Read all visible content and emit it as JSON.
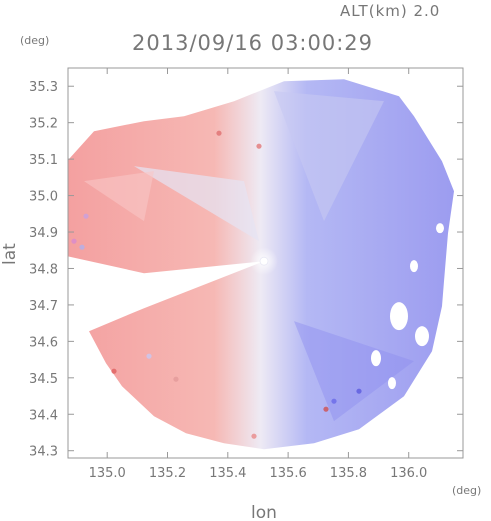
{
  "header": {
    "altitude": "ALT(km) 2.0",
    "timestamp": "2013/09/16 03:00:29"
  },
  "colors": {
    "approaching": "#7b7bf2",
    "receding": "#f28a8a",
    "frame": "#999999",
    "text": "#777777"
  },
  "chart_data": {
    "type": "heatmap",
    "title": "2013/09/16 03:00:29",
    "annotation": "ALT(km) 2.0",
    "xlabel": "lon",
    "ylabel": "lat",
    "x_unit": "(deg)",
    "y_unit": "(deg)",
    "xlim": [
      134.87,
      136.18
    ],
    "ylim": [
      34.28,
      35.35
    ],
    "x_ticks": [
      135.0,
      135.2,
      135.4,
      135.6,
      135.8,
      136.0
    ],
    "y_ticks": [
      34.3,
      34.4,
      34.5,
      34.6,
      34.7,
      34.8,
      34.9,
      35.0,
      35.1,
      35.2,
      35.3
    ],
    "x_tick_labels": [
      "135.0",
      "135.2",
      "135.4",
      "135.6",
      "135.8",
      "136.0"
    ],
    "y_tick_labels": [
      "34.3",
      "34.4",
      "34.5",
      "34.6",
      "34.7",
      "34.8",
      "34.9",
      "35.0",
      "35.1",
      "35.2",
      "35.3"
    ],
    "radar_center": {
      "lon": 135.52,
      "lat": 34.82
    },
    "grid": false,
    "legend": "none"
  }
}
